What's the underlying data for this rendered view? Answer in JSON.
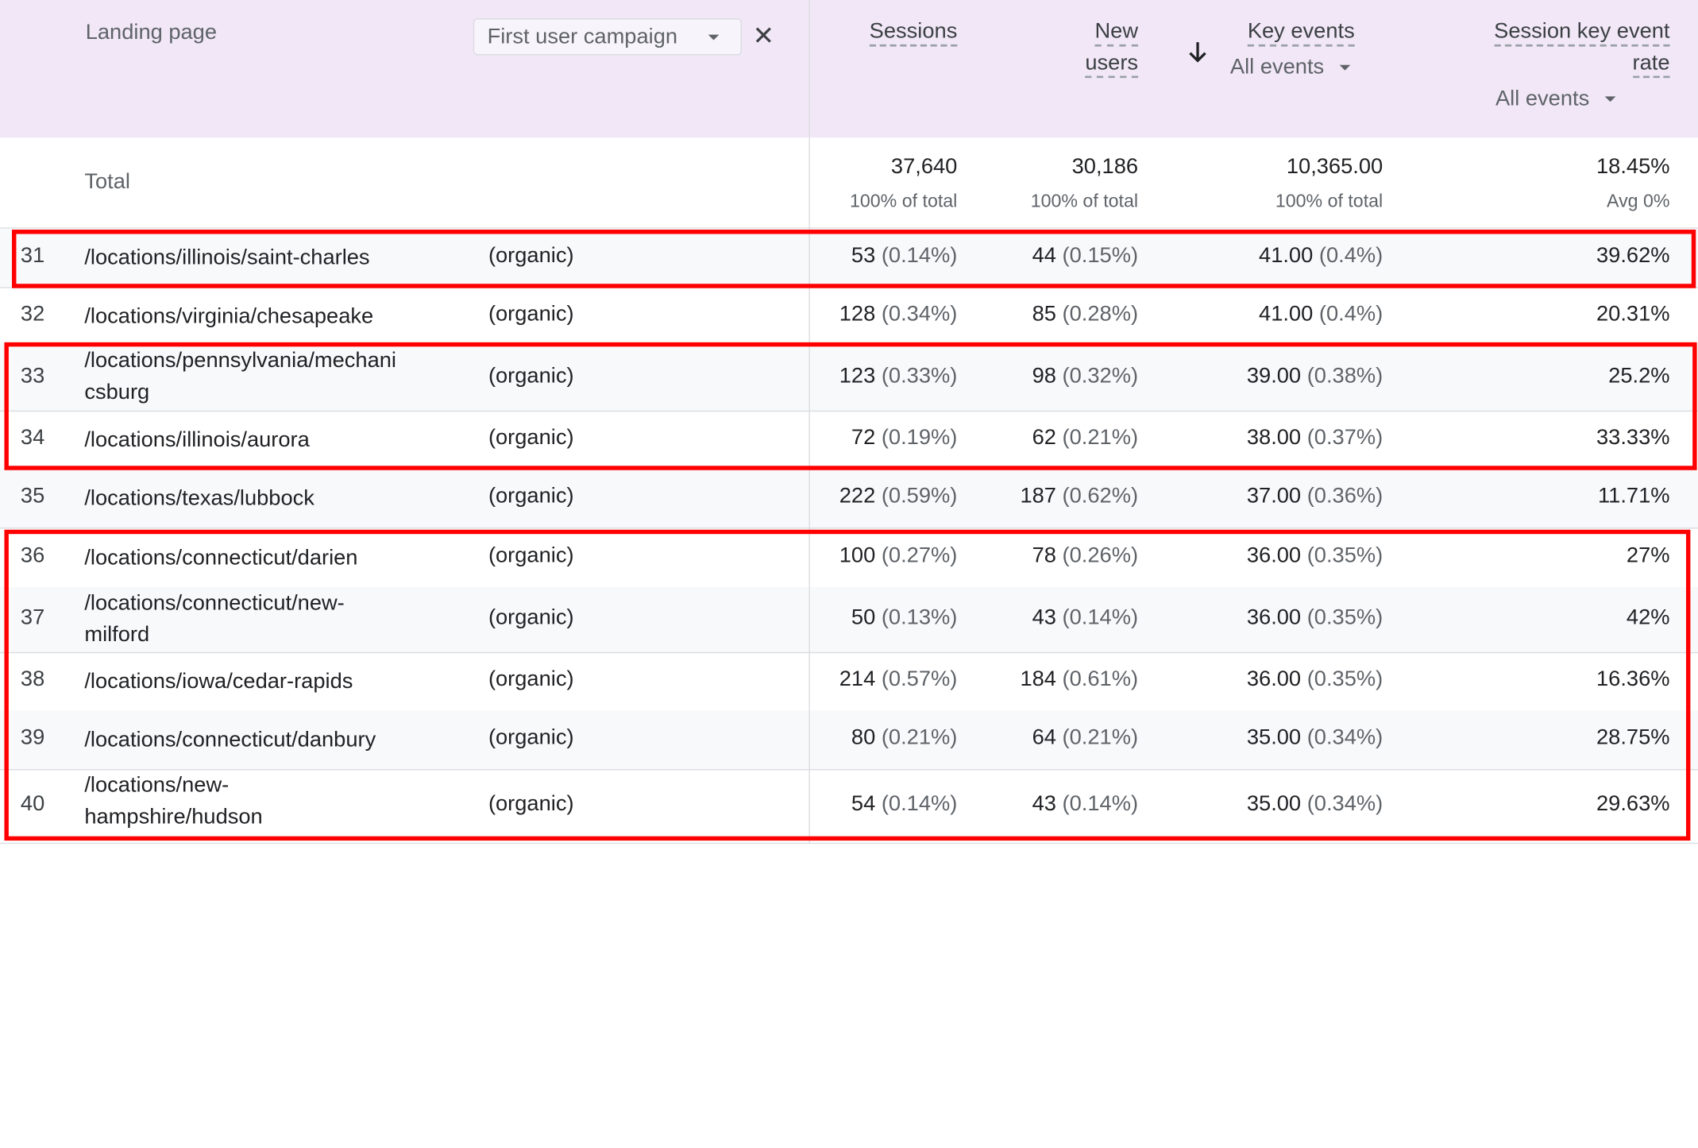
{
  "header": {
    "landing_page": "Landing page",
    "dimension_chip": "First user campaign",
    "sessions": "Sessions",
    "new_users_1": "New",
    "new_users_2": "users",
    "key_events": "Key events",
    "key_events_filter": "All events",
    "rate_1": "Session key event",
    "rate_2": "rate",
    "rate_filter": "All events"
  },
  "total": {
    "label": "Total",
    "sessions": "37,640",
    "sessions_sub": "100% of total",
    "new_users": "30,186",
    "new_users_sub": "100% of total",
    "key_events": "10,365.00",
    "key_events_sub": "100% of total",
    "rate": "18.45%",
    "rate_sub": "Avg 0%"
  },
  "rows": [
    {
      "idx": "31",
      "path1": "/locations/illinois/saint-charles",
      "path2": "",
      "campaign": "(organic)",
      "sessions": "53",
      "sessions_pct": "(0.14%)",
      "new_users": "44",
      "new_users_pct": "(0.15%)",
      "key_events": "41.00",
      "key_events_pct": "(0.4%)",
      "rate": "39.62%"
    },
    {
      "idx": "32",
      "path1": "/locations/virginia/chesapeake",
      "path2": "",
      "campaign": "(organic)",
      "sessions": "128",
      "sessions_pct": "(0.34%)",
      "new_users": "85",
      "new_users_pct": "(0.28%)",
      "key_events": "41.00",
      "key_events_pct": "(0.4%)",
      "rate": "20.31%"
    },
    {
      "idx": "33",
      "path1": "/locations/pennsylvania/mechani",
      "path2": "csburg",
      "campaign": "(organic)",
      "sessions": "123",
      "sessions_pct": "(0.33%)",
      "new_users": "98",
      "new_users_pct": "(0.32%)",
      "key_events": "39.00",
      "key_events_pct": "(0.38%)",
      "rate": "25.2%"
    },
    {
      "idx": "34",
      "path1": "/locations/illinois/aurora",
      "path2": "",
      "campaign": "(organic)",
      "sessions": "72",
      "sessions_pct": "(0.19%)",
      "new_users": "62",
      "new_users_pct": "(0.21%)",
      "key_events": "38.00",
      "key_events_pct": "(0.37%)",
      "rate": "33.33%"
    },
    {
      "idx": "35",
      "path1": "/locations/texas/lubbock",
      "path2": "",
      "campaign": "(organic)",
      "sessions": "222",
      "sessions_pct": "(0.59%)",
      "new_users": "187",
      "new_users_pct": "(0.62%)",
      "key_events": "37.00",
      "key_events_pct": "(0.36%)",
      "rate": "11.71%"
    },
    {
      "idx": "36",
      "path1": "/locations/connecticut/darien",
      "path2": "",
      "campaign": "(organic)",
      "sessions": "100",
      "sessions_pct": "(0.27%)",
      "new_users": "78",
      "new_users_pct": "(0.26%)",
      "key_events": "36.00",
      "key_events_pct": "(0.35%)",
      "rate": "27%"
    },
    {
      "idx": "37",
      "path1": "/locations/connecticut/new-",
      "path2": "milford",
      "campaign": "(organic)",
      "sessions": "50",
      "sessions_pct": "(0.13%)",
      "new_users": "43",
      "new_users_pct": "(0.14%)",
      "key_events": "36.00",
      "key_events_pct": "(0.35%)",
      "rate": "42%"
    },
    {
      "idx": "38",
      "path1": "/locations/iowa/cedar-rapids",
      "path2": "",
      "campaign": "(organic)",
      "sessions": "214",
      "sessions_pct": "(0.57%)",
      "new_users": "184",
      "new_users_pct": "(0.61%)",
      "key_events": "36.00",
      "key_events_pct": "(0.35%)",
      "rate": "16.36%"
    },
    {
      "idx": "39",
      "path1": "/locations/connecticut/danbury",
      "path2": "",
      "campaign": "(organic)",
      "sessions": "80",
      "sessions_pct": "(0.21%)",
      "new_users": "64",
      "new_users_pct": "(0.21%)",
      "key_events": "35.00",
      "key_events_pct": "(0.34%)",
      "rate": "28.75%"
    },
    {
      "idx": "40",
      "path1": "/locations/new-",
      "path2": "hampshire/hudson",
      "campaign": "(organic)",
      "sessions": "54",
      "sessions_pct": "(0.14%)",
      "new_users": "43",
      "new_users_pct": "(0.14%)",
      "key_events": "35.00",
      "key_events_pct": "(0.34%)",
      "rate": "29.63%"
    }
  ],
  "highlight_color": "#ff0000"
}
